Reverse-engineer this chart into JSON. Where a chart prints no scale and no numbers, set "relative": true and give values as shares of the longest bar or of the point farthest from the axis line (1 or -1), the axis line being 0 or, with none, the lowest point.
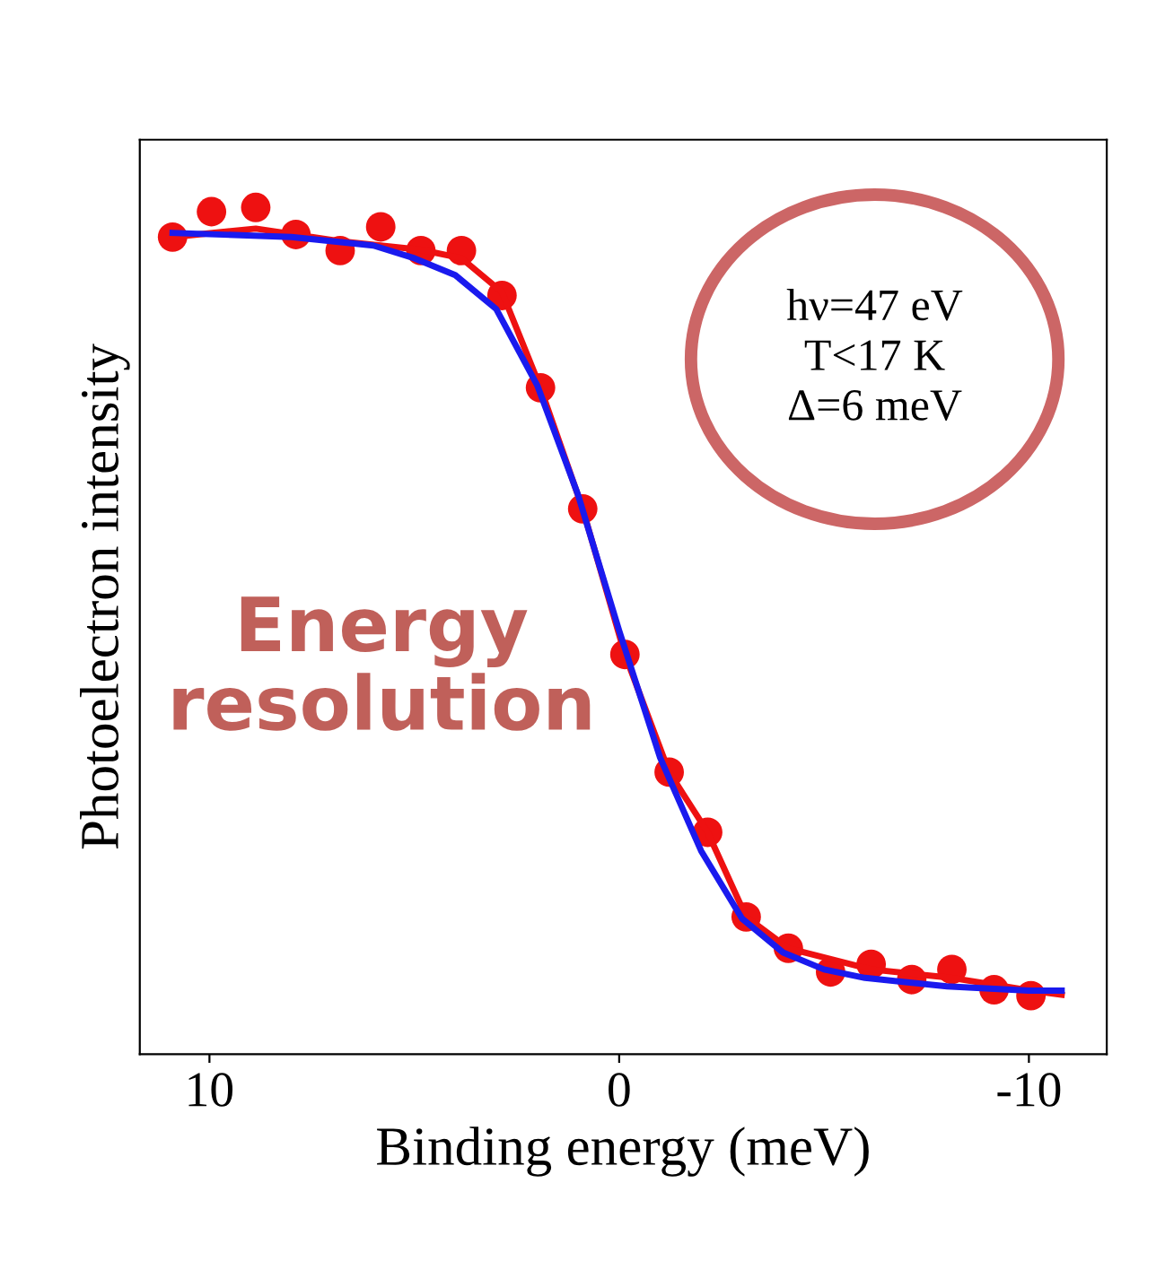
{
  "chart_data": {
    "type": "scatter",
    "relative": true,
    "xlabel": "Binding energy (meV)",
    "ylabel": "Photoelectron intensity",
    "xlim": [
      11.7,
      -11.9
    ],
    "xticks": [
      10,
      0,
      {
        "value": -10,
        "label": "-10"
      }
    ],
    "grid": false,
    "legend": false,
    "series": [
      {
        "color": "#ee1111",
        "marker": "circle",
        "x": [
          10.9,
          9.95,
          8.87,
          7.89,
          6.81,
          5.82,
          4.84,
          3.85,
          2.86,
          1.92,
          0.89,
          -0.14,
          -1.22,
          -2.16,
          -3.1,
          -4.13,
          -5.16,
          -6.15,
          -7.14,
          -8.12,
          -9.15,
          -10.05
        ],
        "values": [
          0.965,
          0.995,
          1.0,
          0.968,
          0.949,
          0.977,
          0.949,
          0.949,
          0.896,
          0.787,
          0.644,
          0.472,
          0.333,
          0.262,
          0.162,
          0.125,
          0.097,
          0.106,
          0.088,
          0.1,
          0.076,
          0.069
        ]
      },
      {
        "type": "line",
        "color": "#ee1111",
        "x": [
          10.9,
          8.87,
          6.81,
          4.84,
          3.85,
          2.86,
          1.92,
          0.89,
          -0.14,
          -1.22,
          -2.16,
          -3.1,
          -4.13,
          -6.15,
          -8.12,
          -10.05,
          -10.8
        ],
        "values": [
          0.965,
          0.975,
          0.96,
          0.95,
          0.94,
          0.9,
          0.787,
          0.644,
          0.472,
          0.333,
          0.262,
          0.162,
          0.125,
          0.1,
          0.09,
          0.075,
          0.07
        ]
      },
      {
        "type": "line",
        "color": "#1a1aee",
        "x": [
          10.9,
          8,
          6,
          5,
          4,
          3,
          2,
          1,
          0,
          -1,
          -2,
          -3,
          -4,
          -5,
          -6,
          -8,
          -10,
          -10.8
        ],
        "values": [
          0.97,
          0.965,
          0.955,
          0.94,
          0.92,
          0.88,
          0.79,
          0.66,
          0.5,
          0.35,
          0.24,
          0.16,
          0.12,
          0.1,
          0.09,
          0.08,
          0.075,
          0.075
        ]
      }
    ],
    "annotations": [
      "hν=47 eV",
      "T<17 K",
      "Δ=6 meV",
      "Energy resolution"
    ]
  }
}
